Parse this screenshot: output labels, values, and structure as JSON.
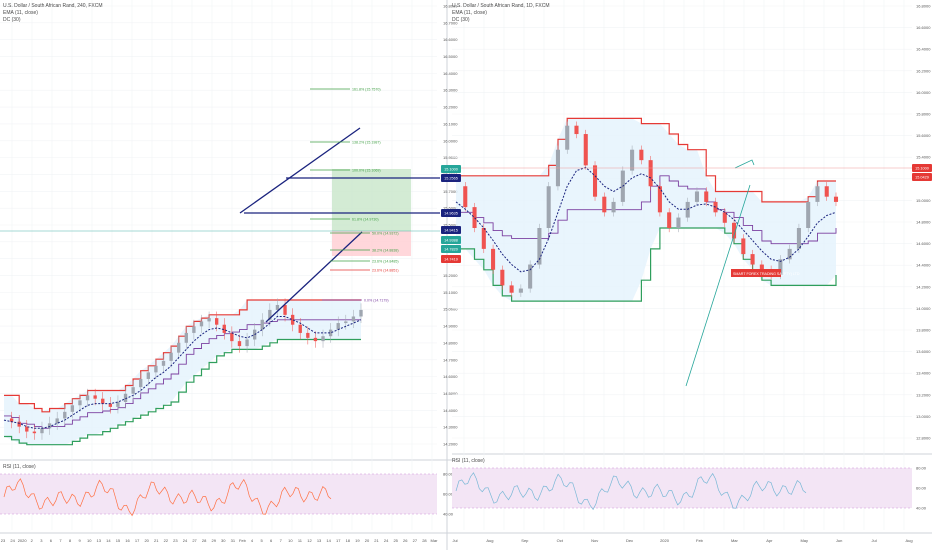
{
  "colors": {
    "up_candle": "#9fa6b0",
    "down_candle": "#ef5350",
    "channel_upper": "#e53935",
    "channel_lower": "#2e9e5c",
    "channel_fill": "#e3f2fd",
    "ema": "#1a237e",
    "dc_basis": "#7b3fa0",
    "long_profit_zone": "#c8e6c9",
    "long_stop_zone": "#ffcdd2",
    "fib_line": "#43a047",
    "rsi_band": "#f3e5f5",
    "rsi_line_left": "#ff7043",
    "rsi_line_right": "#7ab8d6",
    "trendline": "#1a237e",
    "badge_dark": "#1a237e",
    "badge_green": "#26a69a",
    "badge_red": "#e53935"
  },
  "left_panel": {
    "header": {
      "title": "U.S. Dollar / South African Rand, 240, FXCM",
      "indicator_1": "EMA (11, close)",
      "indicator_2": "DC (30)"
    },
    "price_axis": [
      "16.8000",
      "16.7000",
      "16.6000",
      "16.5000",
      "16.4000",
      "16.3000",
      "16.2000",
      "16.1000",
      "16.0000",
      "15.9000",
      "15.8000",
      "15.7000",
      "15.6000",
      "15.5000",
      "15.4000",
      "15.3000",
      "15.2000",
      "15.1000",
      "15.0000",
      "14.9000",
      "14.8000",
      "14.7000",
      "14.6000",
      "14.5000",
      "14.4000",
      "14.3000",
      "14.2000"
    ],
    "badges": [
      {
        "text": "15.1000",
        "kind": "green"
      },
      {
        "text": "15.2565",
        "kind": "dark"
      },
      {
        "text": "14.9635",
        "kind": "dark"
      },
      {
        "text": "14.9415",
        "kind": "dark"
      },
      {
        "text": "14.9388",
        "kind": "green"
      },
      {
        "text": "14.7820",
        "kind": "green"
      },
      {
        "text": "14.7419",
        "kind": "red"
      }
    ],
    "fib_labels": [
      "161.8% (15.7570)",
      "138.2% (15.1987)",
      "100.0% (15.1069)",
      "61.8% (14.9730)",
      "50.0% (14.9372)",
      "38.2% (14.8838)",
      "23.6% (14.8485)",
      "0.0% (14.7179)",
      "23.6% (14.8851)"
    ],
    "rsi_header": "RSI (11, close)",
    "rsi_axis": [
      "80.00",
      "60.00",
      "40.00"
    ],
    "time_axis": [
      "23",
      "24",
      "2020",
      "2",
      "3",
      "6",
      "7",
      "8",
      "9",
      "10",
      "13",
      "14",
      "15",
      "16",
      "17",
      "20",
      "21",
      "22",
      "23",
      "24",
      "27",
      "28",
      "29",
      "30",
      "31",
      "Feb",
      "4",
      "5",
      "6",
      "7",
      "10",
      "11",
      "12",
      "13",
      "14",
      "17",
      "18",
      "19",
      "20",
      "21",
      "24",
      "25",
      "26",
      "27",
      "28",
      "Mar"
    ]
  },
  "right_panel": {
    "header": {
      "title": "U.S. Dollar / South African Rand, 1D, FXCM",
      "indicator_1": "EMA (11, close)",
      "indicator_2": "DC (30)"
    },
    "price_axis": [
      "16.8000",
      "16.6000",
      "16.4000",
      "16.2000",
      "16.0000",
      "15.8000",
      "15.6000",
      "15.4000",
      "15.2000",
      "15.0000",
      "14.8000",
      "14.6000",
      "14.4000",
      "14.2000",
      "14.0000",
      "13.8000",
      "13.6000",
      "13.4000",
      "13.2000",
      "13.0000",
      "12.8000"
    ],
    "badges": [
      {
        "text": "15.1000",
        "kind": "red"
      },
      {
        "text": "15.0429",
        "kind": "red"
      }
    ],
    "annotation": "SMART FOREX TRADING SA (PTY) LTD",
    "rsi_header": "RSI (11, close)",
    "rsi_axis": [
      "80.00",
      "60.00",
      "40.00"
    ],
    "time_axis": [
      "Jul",
      "Aug",
      "Sep",
      "Oct",
      "Nov",
      "Dec",
      "2020",
      "Feb",
      "Mar",
      "Apr",
      "May",
      "Jun",
      "Jul",
      "Aug"
    ]
  },
  "chart_data": [
    {
      "type": "line",
      "title": "U.S. Dollar / South African Rand, 240, FXCM",
      "series": [
        {
          "name": "Close",
          "values": [
            14.36,
            14.34,
            14.31,
            14.28,
            14.27,
            14.3,
            14.33,
            14.36,
            14.4,
            14.44,
            14.47,
            14.5,
            14.48,
            14.45,
            14.43,
            14.46,
            14.51,
            14.55,
            14.6,
            14.64,
            14.68,
            14.71,
            14.76,
            14.82,
            14.88,
            14.92,
            14.95,
            14.97,
            14.93,
            14.88,
            14.83,
            14.8,
            14.84,
            14.9,
            14.96,
            15.02,
            15.05,
            14.99,
            14.93,
            14.88,
            14.85,
            14.83,
            14.86,
            14.9,
            14.94,
            14.95,
            14.98,
            15.02
          ]
        },
        {
          "name": "EMA (11, close)",
          "values": [
            14.35,
            14.34,
            14.33,
            14.31,
            14.3,
            14.3,
            14.31,
            14.33,
            14.35,
            14.38,
            14.41,
            14.44,
            14.45,
            14.45,
            14.45,
            14.46,
            14.48,
            14.5,
            14.53,
            14.57,
            14.61,
            14.64,
            14.68,
            14.73,
            14.78,
            14.83,
            14.87,
            14.9,
            14.91,
            14.9,
            14.88,
            14.86,
            14.85,
            14.87,
            14.9,
            14.94,
            14.98,
            14.98,
            14.96,
            14.94,
            14.91,
            14.88,
            14.88,
            14.88,
            14.9,
            14.92,
            14.94,
            14.96
          ]
        },
        {
          "name": "DC upper",
          "values": [
            14.5,
            14.5,
            14.45,
            14.45,
            14.42,
            14.4,
            14.42,
            14.42,
            14.45,
            14.48,
            14.5,
            14.53,
            14.53,
            14.53,
            14.53,
            14.53,
            14.56,
            14.6,
            14.65,
            14.68,
            14.72,
            14.76,
            14.8,
            14.86,
            14.92,
            14.95,
            14.97,
            14.99,
            14.99,
            14.99,
            14.99,
            15.02,
            15.08,
            15.08,
            15.08,
            15.08,
            15.08,
            15.08,
            15.08,
            15.08,
            15.08,
            15.08,
            15.08,
            15.08,
            15.08,
            15.08,
            15.08,
            15.08
          ]
        },
        {
          "name": "DC lower",
          "values": [
            14.25,
            14.23,
            14.21,
            14.2,
            14.2,
            14.2,
            14.2,
            14.2,
            14.2,
            14.22,
            14.24,
            14.26,
            14.26,
            14.28,
            14.3,
            14.32,
            14.34,
            14.36,
            14.38,
            14.4,
            14.42,
            14.44,
            14.46,
            14.52,
            14.58,
            14.62,
            14.66,
            14.7,
            14.74,
            14.76,
            14.78,
            14.78,
            14.78,
            14.78,
            14.8,
            14.82,
            14.84,
            14.84,
            14.84,
            14.84,
            14.84,
            14.84,
            14.84,
            14.84,
            14.84,
            14.84,
            14.84,
            14.84
          ]
        }
      ]
    },
    {
      "type": "line",
      "title": "U.S. Dollar / South African Rand, 1D, FXCM",
      "series": [
        {
          "name": "Close",
          "values": [
            15.2,
            15.0,
            14.8,
            14.6,
            14.4,
            14.25,
            14.18,
            14.22,
            14.45,
            14.8,
            15.2,
            15.55,
            15.78,
            15.7,
            15.4,
            15.1,
            14.95,
            15.05,
            15.35,
            15.55,
            15.45,
            15.2,
            14.95,
            14.8,
            14.9,
            15.05,
            15.15,
            15.05,
            14.95,
            14.85,
            14.7,
            14.55,
            14.45,
            14.4,
            14.35,
            14.5,
            14.6,
            14.8,
            15.05,
            15.2,
            15.1,
            15.05
          ]
        },
        {
          "name": "EMA (11, close)",
          "values": [
            15.05,
            14.98,
            14.9,
            14.8,
            14.68,
            14.55,
            14.45,
            14.38,
            14.4,
            14.5,
            14.7,
            14.95,
            15.2,
            15.35,
            15.38,
            15.3,
            15.2,
            15.15,
            15.2,
            15.28,
            15.32,
            15.28,
            15.18,
            15.05,
            14.98,
            14.98,
            15.02,
            15.03,
            15.0,
            14.95,
            14.88,
            14.78,
            14.68,
            14.58,
            14.5,
            14.48,
            14.52,
            14.6,
            14.72,
            14.85,
            14.92,
            14.95
          ]
        },
        {
          "name": "DC upper",
          "values": [
            15.3,
            15.3,
            15.3,
            15.3,
            15.3,
            15.3,
            15.3,
            15.3,
            15.3,
            15.3,
            15.4,
            15.65,
            15.85,
            15.85,
            15.85,
            15.85,
            15.85,
            15.85,
            15.85,
            15.85,
            15.8,
            15.8,
            15.8,
            15.7,
            15.6,
            15.55,
            15.55,
            15.3,
            15.15,
            15.15,
            15.15,
            15.15,
            15.15,
            15.05,
            15.05,
            15.05,
            15.05,
            15.05,
            15.1,
            15.25,
            15.25,
            15.25
          ]
        },
        {
          "name": "DC lower",
          "values": [
            14.6,
            14.6,
            14.5,
            14.4,
            14.25,
            14.15,
            14.1,
            14.1,
            14.1,
            14.1,
            14.1,
            14.1,
            14.1,
            14.1,
            14.1,
            14.1,
            14.1,
            14.1,
            14.1,
            14.1,
            14.3,
            14.6,
            14.8,
            14.8,
            14.8,
            14.8,
            14.8,
            14.8,
            14.8,
            14.75,
            14.65,
            14.5,
            14.4,
            14.3,
            14.25,
            14.25,
            14.25,
            14.25,
            14.25,
            14.25,
            14.25,
            14.35
          ]
        }
      ]
    }
  ]
}
